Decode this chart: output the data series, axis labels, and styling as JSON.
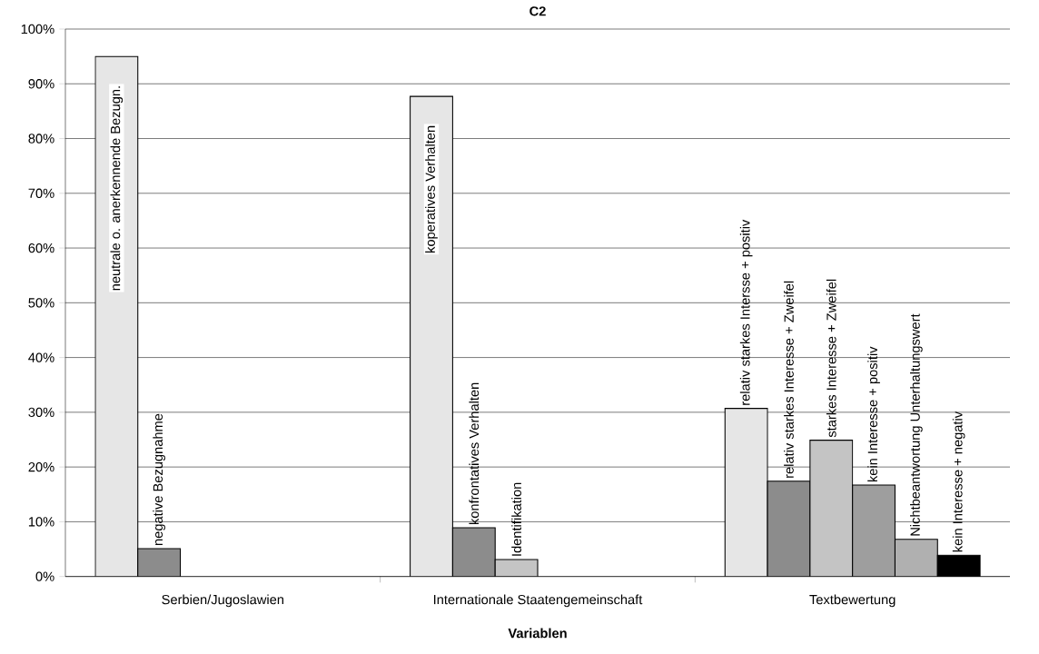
{
  "chart_data": {
    "type": "bar",
    "title": "C2",
    "xlabel": "Variablen",
    "categories": [
      "Serbien/Jugoslawien",
      "Internationale Staatengemeinschaft",
      "Textbewertung"
    ],
    "series": [
      {
        "color": "#e6e6e6",
        "values": [
          95,
          87.7,
          30.7
        ]
      },
      {
        "color": "#8c8c8c",
        "values": [
          5.1,
          8.9,
          17.4
        ]
      },
      {
        "color": "#c4c4c4",
        "values": [
          null,
          3.1,
          24.9
        ]
      },
      {
        "color": "#9e9e9e",
        "values": [
          null,
          null,
          16.7
        ]
      },
      {
        "color": "#b0b0b0",
        "values": [
          null,
          null,
          6.8
        ]
      },
      {
        "color": "#000000",
        "values": [
          null,
          null,
          3.9
        ]
      }
    ],
    "annotations": [
      "neutrale o. anerkennende Bezugn.",
      "negative Bezugnahme",
      "koperatives Verhalten",
      "konfrontatives Verhalten",
      "Identifikation",
      "relativ starkes Intersse + positiv",
      "relativ starkes Interesse + Zweifel",
      "starkes Interesse + Zweifel",
      "kein Interesse + positiv",
      "Nichtbeantwortung Unterhaltungswert",
      "kein Interesse + negativ"
    ],
    "ylim": [
      0,
      100
    ],
    "yticks": [
      {
        "value": 0,
        "label": "0%"
      },
      {
        "value": 10,
        "label": "10%"
      },
      {
        "value": 20,
        "label": "20%"
      },
      {
        "value": 30,
        "label": "30%"
      },
      {
        "value": 40,
        "label": "40%"
      },
      {
        "value": 50,
        "label": "50%"
      },
      {
        "value": 60,
        "label": "60%"
      },
      {
        "value": 70,
        "label": "70%"
      },
      {
        "value": 80,
        "label": "80%"
      },
      {
        "value": 90,
        "label": "90%"
      },
      {
        "value": 100,
        "label": "100%"
      }
    ],
    "grid": "y"
  }
}
